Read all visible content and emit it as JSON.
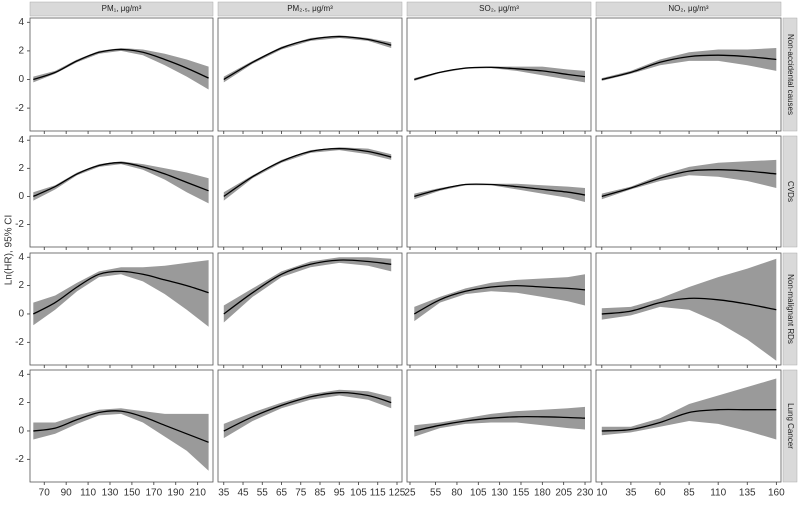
{
  "chart_data": {
    "type": "line",
    "ylabel": "Ln(HR), 95% CI",
    "ylim": [
      -3.6,
      4.3
    ],
    "yticks": [
      -2,
      0,
      2,
      4
    ],
    "line_color": "#000000",
    "band_color": "#9a9a9a",
    "columns": [
      {
        "title": "PM₁, μg/m³",
        "x": [
          60,
          80,
          100,
          120,
          140,
          160,
          180,
          200,
          220
        ],
        "xlim": [
          57,
          224
        ],
        "xticks": [
          70,
          90,
          110,
          130,
          150,
          170,
          190,
          210
        ]
      },
      {
        "title": "PM₂.₅, μg/m³",
        "x": [
          35,
          50,
          65,
          80,
          95,
          110,
          122
        ],
        "xlim": [
          32,
          127.6
        ],
        "xticks": [
          35,
          45,
          55,
          65,
          75,
          85,
          95,
          105,
          115,
          125
        ]
      },
      {
        "title": "SO₂, μg/m³",
        "x": [
          30,
          60,
          90,
          120,
          150,
          180,
          210,
          230
        ],
        "xlim": [
          21.5,
          237
        ],
        "xticks": [
          25,
          55,
          80,
          105,
          130,
          155,
          180,
          205,
          230
        ]
      },
      {
        "title": "NO₂, μg/m³",
        "x": [
          10,
          35,
          60,
          85,
          110,
          135,
          160
        ],
        "xlim": [
          5,
          164
        ],
        "xticks": [
          10,
          35,
          60,
          85,
          110,
          135,
          160
        ]
      }
    ],
    "rows": [
      {
        "title": "Non-accidental causes",
        "panels": [
          {
            "fit": [
              0,
              0.5,
              1.3,
              1.9,
              2.1,
              1.9,
              1.4,
              0.8,
              0.1
            ],
            "lower": [
              -0.2,
              0.4,
              1.2,
              1.8,
              2.0,
              1.7,
              1.0,
              0.2,
              -0.7
            ],
            "upper": [
              0.2,
              0.6,
              1.4,
              2.0,
              2.2,
              2.1,
              1.8,
              1.4,
              0.9
            ]
          },
          {
            "fit": [
              0,
              1.2,
              2.2,
              2.8,
              3.0,
              2.8,
              2.4
            ],
            "lower": [
              -0.2,
              1.1,
              2.1,
              2.7,
              2.9,
              2.7,
              2.2
            ],
            "upper": [
              0.2,
              1.3,
              2.3,
              2.9,
              3.1,
              2.9,
              2.6
            ]
          },
          {
            "fit": [
              0,
              0.5,
              0.8,
              0.85,
              0.75,
              0.6,
              0.35,
              0.2
            ],
            "lower": [
              -0.1,
              0.45,
              0.75,
              0.8,
              0.6,
              0.3,
              0,
              -0.2
            ],
            "upper": [
              0.1,
              0.55,
              0.85,
              0.9,
              0.9,
              0.9,
              0.7,
              0.6
            ]
          },
          {
            "fit": [
              0,
              0.5,
              1.2,
              1.6,
              1.7,
              1.6,
              1.4
            ],
            "lower": [
              -0.1,
              0.4,
              1.0,
              1.3,
              1.3,
              1.0,
              0.6
            ],
            "upper": [
              0.1,
              0.6,
              1.4,
              1.9,
              2.1,
              2.1,
              2.2
            ]
          }
        ]
      },
      {
        "title": "CVDs",
        "panels": [
          {
            "fit": [
              0,
              0.7,
              1.6,
              2.2,
              2.4,
              2.1,
              1.6,
              1.0,
              0.4
            ],
            "lower": [
              -0.3,
              0.5,
              1.5,
              2.1,
              2.3,
              1.9,
              1.2,
              0.3,
              -0.5
            ],
            "upper": [
              0.3,
              0.8,
              1.7,
              2.3,
              2.5,
              2.3,
              2.0,
              1.7,
              1.3
            ]
          },
          {
            "fit": [
              0,
              1.4,
              2.5,
              3.2,
              3.4,
              3.2,
              2.8
            ],
            "lower": [
              -0.3,
              1.3,
              2.4,
              3.1,
              3.3,
              3.0,
              2.6
            ],
            "upper": [
              0.3,
              1.5,
              2.6,
              3.3,
              3.5,
              3.4,
              3.0
            ]
          },
          {
            "fit": [
              0,
              0.5,
              0.85,
              0.85,
              0.7,
              0.5,
              0.3,
              0.1
            ],
            "lower": [
              -0.2,
              0.4,
              0.8,
              0.8,
              0.5,
              0.2,
              -0.1,
              -0.4
            ],
            "upper": [
              0.2,
              0.6,
              0.9,
              0.9,
              0.9,
              0.8,
              0.7,
              0.6
            ]
          },
          {
            "fit": [
              0,
              0.6,
              1.3,
              1.8,
              1.9,
              1.8,
              1.6
            ],
            "lower": [
              -0.2,
              0.5,
              1.1,
              1.5,
              1.4,
              1.1,
              0.6
            ],
            "upper": [
              0.2,
              0.7,
              1.5,
              2.1,
              2.4,
              2.5,
              2.6
            ]
          }
        ]
      },
      {
        "title": "Non-malignant RDs",
        "panels": [
          {
            "fit": [
              0,
              0.8,
              1.9,
              2.8,
              3.0,
              2.8,
              2.4,
              2.0,
              1.5
            ],
            "lower": [
              -0.8,
              0.3,
              1.6,
              2.6,
              2.8,
              2.3,
              1.4,
              0.3,
              -0.9
            ],
            "upper": [
              0.8,
              1.3,
              2.2,
              3.0,
              3.3,
              3.3,
              3.4,
              3.6,
              3.8
            ]
          },
          {
            "fit": [
              0,
              1.5,
              2.8,
              3.5,
              3.8,
              3.7,
              3.5
            ],
            "lower": [
              -0.6,
              1.2,
              2.6,
              3.3,
              3.6,
              3.4,
              3.0
            ],
            "upper": [
              0.6,
              1.8,
              3.0,
              3.7,
              4.0,
              4.0,
              3.9
            ]
          },
          {
            "fit": [
              0,
              1.0,
              1.6,
              1.9,
              2.0,
              1.9,
              1.8,
              1.7
            ],
            "lower": [
              -0.5,
              0.8,
              1.4,
              1.6,
              1.5,
              1.2,
              0.9,
              0.6
            ],
            "upper": [
              0.5,
              1.2,
              1.8,
              2.2,
              2.4,
              2.5,
              2.6,
              2.8
            ]
          },
          {
            "fit": [
              0,
              0.2,
              0.8,
              1.1,
              1.0,
              0.7,
              0.3
            ],
            "lower": [
              -0.4,
              -0.1,
              0.5,
              0.3,
              -0.6,
              -1.8,
              -3.3
            ],
            "upper": [
              0.4,
              0.5,
              1.1,
              1.9,
              2.6,
              3.2,
              3.9
            ]
          }
        ]
      },
      {
        "title": "Lung Cancer",
        "panels": [
          {
            "fit": [
              0,
              0.2,
              0.8,
              1.3,
              1.4,
              1.0,
              0.4,
              -0.2,
              -0.8
            ],
            "lower": [
              -0.6,
              -0.2,
              0.5,
              1.1,
              1.2,
              0.6,
              -0.4,
              -1.4,
              -2.8
            ],
            "upper": [
              0.6,
              0.6,
              1.1,
              1.5,
              1.6,
              1.4,
              1.2,
              1.2,
              1.2
            ]
          },
          {
            "fit": [
              0,
              1.0,
              1.8,
              2.4,
              2.7,
              2.5,
              2.0
            ],
            "lower": [
              -0.5,
              0.7,
              1.6,
              2.2,
              2.5,
              2.2,
              1.6
            ],
            "upper": [
              0.5,
              1.3,
              2.0,
              2.6,
              2.9,
              2.8,
              2.4
            ]
          },
          {
            "fit": [
              0,
              0.4,
              0.7,
              0.9,
              1.0,
              1.0,
              0.95,
              0.9
            ],
            "lower": [
              -0.4,
              0.2,
              0.5,
              0.6,
              0.6,
              0.4,
              0.2,
              0.1
            ],
            "upper": [
              0.4,
              0.6,
              0.9,
              1.2,
              1.4,
              1.5,
              1.6,
              1.7
            ]
          },
          {
            "fit": [
              0,
              0.1,
              0.6,
              1.3,
              1.5,
              1.5,
              1.5
            ],
            "lower": [
              -0.3,
              -0.1,
              0.3,
              0.7,
              0.5,
              0.0,
              -0.6
            ],
            "upper": [
              0.3,
              0.3,
              0.9,
              1.9,
              2.5,
              3.1,
              3.7
            ]
          }
        ]
      }
    ]
  }
}
